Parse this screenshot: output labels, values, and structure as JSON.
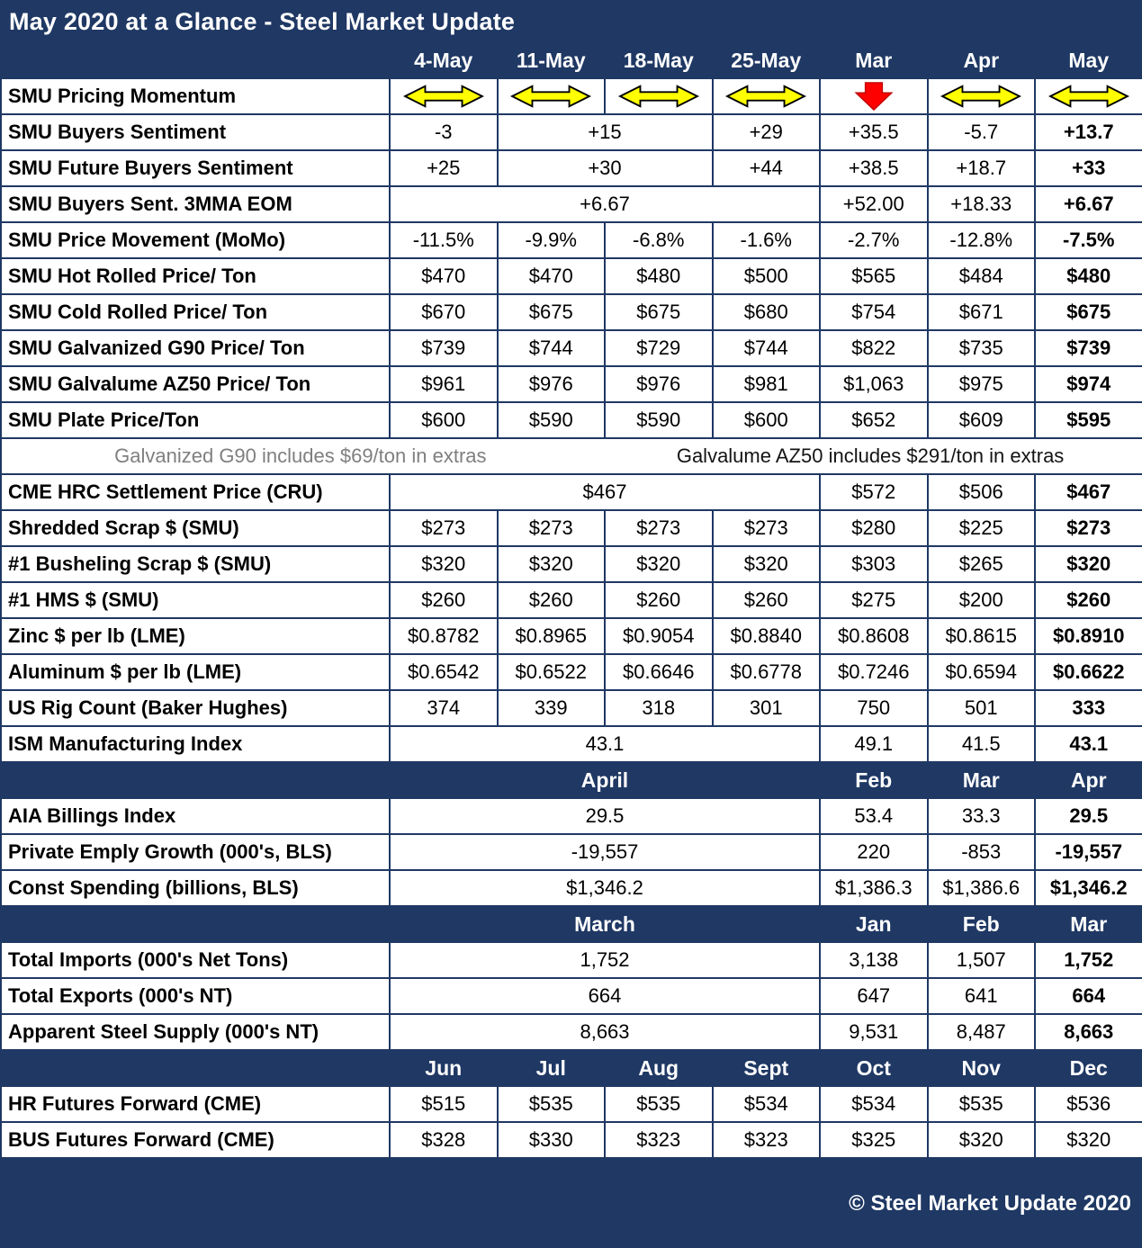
{
  "title": "May 2020 at a Glance - Steel Market Update",
  "footer": "© Steel Market Update 2020",
  "colors": {
    "navy": "#1F3864",
    "cell_bg": "#ffffff",
    "momentum_flat": "#FFFF00",
    "momentum_down": "#FF0000",
    "note_gray": "#7f7f7f"
  },
  "chart_data": {
    "type": "table",
    "title": "May 2020 at a Glance - Steel Market Update",
    "columns": [
      "",
      "4-May",
      "11-May",
      "18-May",
      "25-May",
      "Mar",
      "Apr",
      "May"
    ],
    "rows": [
      {
        "type": "icons",
        "label": "SMU Pricing Momentum",
        "cells": [
          {
            "icon": "flat-arrow"
          },
          {
            "icon": "flat-arrow"
          },
          {
            "icon": "flat-arrow"
          },
          {
            "icon": "flat-arrow"
          },
          {
            "icon": "down-arrow"
          },
          {
            "icon": "flat-arrow"
          },
          {
            "icon": "flat-arrow"
          }
        ]
      },
      {
        "label": "SMU Buyers Sentiment",
        "cells": [
          {
            "v": "-3"
          },
          {
            "v": "+15",
            "span": 2
          },
          {
            "v": "+29"
          },
          {
            "v": "+35.5"
          },
          {
            "v": "-5.7"
          },
          {
            "v": "+13.7",
            "b": 1
          }
        ]
      },
      {
        "label": "SMU Future Buyers Sentiment",
        "cells": [
          {
            "v": "+25"
          },
          {
            "v": "+30",
            "span": 2
          },
          {
            "v": "+44"
          },
          {
            "v": "+38.5"
          },
          {
            "v": "+18.7"
          },
          {
            "v": "+33",
            "b": 1
          }
        ]
      },
      {
        "label": "SMU Buyers Sent. 3MMA EOM",
        "cells": [
          {
            "v": "+6.67",
            "span": 4
          },
          {
            "v": "+52.00"
          },
          {
            "v": "+18.33"
          },
          {
            "v": "+6.67",
            "b": 1
          }
        ]
      },
      {
        "label": "SMU Price Movement (MoMo)",
        "cells": [
          {
            "v": "-11.5%"
          },
          {
            "v": "-9.9%"
          },
          {
            "v": "-6.8%"
          },
          {
            "v": "-1.6%"
          },
          {
            "v": "-2.7%"
          },
          {
            "v": "-12.8%"
          },
          {
            "v": "-7.5%",
            "b": 1
          }
        ]
      },
      {
        "label": "SMU Hot Rolled Price/ Ton",
        "cells": [
          {
            "v": "$470"
          },
          {
            "v": "$470"
          },
          {
            "v": "$480"
          },
          {
            "v": "$500"
          },
          {
            "v": "$565"
          },
          {
            "v": "$484"
          },
          {
            "v": "$480",
            "b": 1
          }
        ]
      },
      {
        "label": "SMU Cold Rolled Price/ Ton",
        "cells": [
          {
            "v": "$670"
          },
          {
            "v": "$675"
          },
          {
            "v": "$675"
          },
          {
            "v": "$680"
          },
          {
            "v": "$754"
          },
          {
            "v": "$671"
          },
          {
            "v": "$675",
            "b": 1
          }
        ]
      },
      {
        "label": "SMU Galvanized G90 Price/ Ton",
        "cells": [
          {
            "v": "$739"
          },
          {
            "v": "$744"
          },
          {
            "v": "$729"
          },
          {
            "v": "$744"
          },
          {
            "v": "$822"
          },
          {
            "v": "$735"
          },
          {
            "v": "$739",
            "b": 1
          }
        ]
      },
      {
        "label": "SMU Galvalume AZ50 Price/ Ton",
        "cells": [
          {
            "v": "$961"
          },
          {
            "v": "$976"
          },
          {
            "v": "$976"
          },
          {
            "v": "$981"
          },
          {
            "v": "$1,063"
          },
          {
            "v": "$975"
          },
          {
            "v": "$974",
            "b": 1
          }
        ]
      },
      {
        "label": "SMU Plate Price/Ton",
        "cells": [
          {
            "v": "$600"
          },
          {
            "v": "$590"
          },
          {
            "v": "$590"
          },
          {
            "v": "$600"
          },
          {
            "v": "$652"
          },
          {
            "v": "$609"
          },
          {
            "v": "$595",
            "b": 1
          }
        ]
      },
      {
        "type": "note",
        "left": "Galvanized G90 includes $69/ton in extras",
        "right": "Galvalume AZ50 includes $291/ton in extras"
      },
      {
        "label": "CME HRC Settlement Price (CRU)",
        "cells": [
          {
            "v": "$467",
            "span": 4
          },
          {
            "v": "$572"
          },
          {
            "v": "$506"
          },
          {
            "v": "$467",
            "b": 1
          }
        ]
      },
      {
        "label": "Shredded Scrap $ (SMU)",
        "cells": [
          {
            "v": "$273"
          },
          {
            "v": "$273"
          },
          {
            "v": "$273"
          },
          {
            "v": "$273"
          },
          {
            "v": "$280"
          },
          {
            "v": "$225"
          },
          {
            "v": "$273",
            "b": 1
          }
        ]
      },
      {
        "label": "#1 Busheling Scrap $ (SMU)",
        "cells": [
          {
            "v": "$320"
          },
          {
            "v": "$320"
          },
          {
            "v": "$320"
          },
          {
            "v": "$320"
          },
          {
            "v": "$303"
          },
          {
            "v": "$265"
          },
          {
            "v": "$320",
            "b": 1
          }
        ]
      },
      {
        "label": "#1 HMS $ (SMU)",
        "cells": [
          {
            "v": "$260"
          },
          {
            "v": "$260"
          },
          {
            "v": "$260"
          },
          {
            "v": "$260"
          },
          {
            "v": "$275"
          },
          {
            "v": "$200"
          },
          {
            "v": "$260",
            "b": 1
          }
        ]
      },
      {
        "label": "Zinc $ per lb (LME)",
        "cells": [
          {
            "v": "$0.8782"
          },
          {
            "v": "$0.8965"
          },
          {
            "v": "$0.9054"
          },
          {
            "v": "$0.8840"
          },
          {
            "v": "$0.8608"
          },
          {
            "v": "$0.8615"
          },
          {
            "v": "$0.8910",
            "b": 1
          }
        ]
      },
      {
        "label": "Aluminum $ per lb (LME)",
        "cells": [
          {
            "v": "$0.6542"
          },
          {
            "v": "$0.6522"
          },
          {
            "v": "$0.6646"
          },
          {
            "v": "$0.6778"
          },
          {
            "v": "$0.7246"
          },
          {
            "v": "$0.6594"
          },
          {
            "v": "$0.6622",
            "b": 1
          }
        ]
      },
      {
        "label": "US Rig Count (Baker Hughes)",
        "cells": [
          {
            "v": "374"
          },
          {
            "v": "339"
          },
          {
            "v": "318"
          },
          {
            "v": "301"
          },
          {
            "v": "750"
          },
          {
            "v": "501"
          },
          {
            "v": "333",
            "b": 1
          }
        ]
      },
      {
        "label": "ISM Manufacturing Index",
        "cells": [
          {
            "v": "43.1",
            "span": 4
          },
          {
            "v": "49.1"
          },
          {
            "v": "41.5"
          },
          {
            "v": "43.1",
            "b": 1
          }
        ]
      },
      {
        "type": "section",
        "cells": [
          {
            "v": "April",
            "span": 4
          },
          {
            "v": "Feb"
          },
          {
            "v": "Mar"
          },
          {
            "v": "Apr"
          }
        ]
      },
      {
        "label": "AIA Billings Index",
        "cells": [
          {
            "v": "29.5",
            "span": 4
          },
          {
            "v": "53.4"
          },
          {
            "v": "33.3"
          },
          {
            "v": "29.5",
            "b": 1
          }
        ]
      },
      {
        "label": "Private Emply Growth (000's, BLS)",
        "cells": [
          {
            "v": "-19,557",
            "span": 4
          },
          {
            "v": "220"
          },
          {
            "v": "-853"
          },
          {
            "v": "-19,557",
            "b": 1
          }
        ]
      },
      {
        "label": "Const Spending (billions, BLS)",
        "cells": [
          {
            "v": "$1,346.2",
            "span": 4
          },
          {
            "v": "$1,386.3"
          },
          {
            "v": "$1,386.6"
          },
          {
            "v": "$1,346.2",
            "b": 1
          }
        ]
      },
      {
        "type": "section",
        "cells": [
          {
            "v": "March",
            "span": 4
          },
          {
            "v": "Jan"
          },
          {
            "v": "Feb"
          },
          {
            "v": "Mar"
          }
        ]
      },
      {
        "label": "Total Imports (000's Net Tons)",
        "cells": [
          {
            "v": "1,752",
            "span": 4
          },
          {
            "v": "3,138"
          },
          {
            "v": "1,507"
          },
          {
            "v": "1,752",
            "b": 1
          }
        ]
      },
      {
        "label": "Total Exports (000's NT)",
        "cells": [
          {
            "v": "664",
            "span": 4
          },
          {
            "v": "647"
          },
          {
            "v": "641"
          },
          {
            "v": "664",
            "b": 1
          }
        ]
      },
      {
        "label": "Apparent Steel Supply (000's NT)",
        "cells": [
          {
            "v": "8,663",
            "span": 4
          },
          {
            "v": "9,531"
          },
          {
            "v": "8,487"
          },
          {
            "v": "8,663",
            "b": 1
          }
        ]
      },
      {
        "type": "section",
        "cells": [
          {
            "v": "Jun"
          },
          {
            "v": "Jul"
          },
          {
            "v": "Aug"
          },
          {
            "v": "Sept"
          },
          {
            "v": "Oct"
          },
          {
            "v": "Nov"
          },
          {
            "v": "Dec"
          }
        ]
      },
      {
        "label": "HR Futures Forward (CME)",
        "cells": [
          {
            "v": "$515"
          },
          {
            "v": "$535"
          },
          {
            "v": "$535"
          },
          {
            "v": "$534"
          },
          {
            "v": "$534"
          },
          {
            "v": "$535"
          },
          {
            "v": "$536"
          }
        ]
      },
      {
        "label": "BUS Futures Forward (CME)",
        "cells": [
          {
            "v": "$328"
          },
          {
            "v": "$330"
          },
          {
            "v": "$323"
          },
          {
            "v": "$323"
          },
          {
            "v": "$325"
          },
          {
            "v": "$320"
          },
          {
            "v": "$320"
          }
        ]
      }
    ]
  }
}
